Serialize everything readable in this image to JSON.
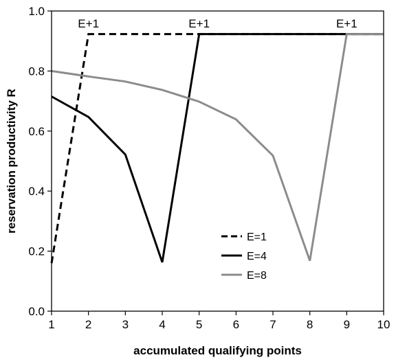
{
  "chart_data": {
    "type": "line",
    "xlabel": "accumulated qualifying points",
    "ylabel": "reservation productivity  R",
    "xlim": [
      1,
      10
    ],
    "ylim": [
      0.0,
      1.0
    ],
    "xticks": [
      1,
      2,
      3,
      4,
      5,
      6,
      7,
      8,
      9,
      10
    ],
    "yticks": [
      "0.0",
      "0.2",
      "0.4",
      "0.6",
      "0.8",
      "1.0"
    ],
    "grid": false,
    "legend_position": "bottom-center",
    "series": [
      {
        "name": "E=1",
        "style": "dashed",
        "color": "#000000",
        "x": [
          1,
          2,
          3,
          4,
          5,
          6,
          7,
          8,
          9,
          10
        ],
        "y": [
          0.16,
          0.923,
          0.923,
          0.923,
          0.923,
          0.923,
          0.923,
          0.923,
          0.923,
          0.923
        ]
      },
      {
        "name": "E=4",
        "style": "solid",
        "color": "#000000",
        "x": [
          1,
          2,
          3,
          4,
          5,
          6,
          7,
          8,
          9,
          10
        ],
        "y": [
          0.715,
          0.647,
          0.522,
          0.163,
          0.923,
          0.923,
          0.923,
          0.923,
          0.923,
          0.923
        ]
      },
      {
        "name": "E=8",
        "style": "solid",
        "color": "#8c8c8c",
        "x": [
          1,
          2,
          3,
          4,
          5,
          6,
          7,
          8,
          9,
          10
        ],
        "y": [
          0.8,
          0.782,
          0.765,
          0.737,
          0.698,
          0.639,
          0.518,
          0.168,
          0.923,
          0.923
        ]
      }
    ],
    "annotations": [
      {
        "text": "E+1",
        "x": 2.0,
        "y": 0.95
      },
      {
        "text": "E+1",
        "x": 5.0,
        "y": 0.95
      },
      {
        "text": "E+1",
        "x": 9.0,
        "y": 0.95
      }
    ]
  }
}
